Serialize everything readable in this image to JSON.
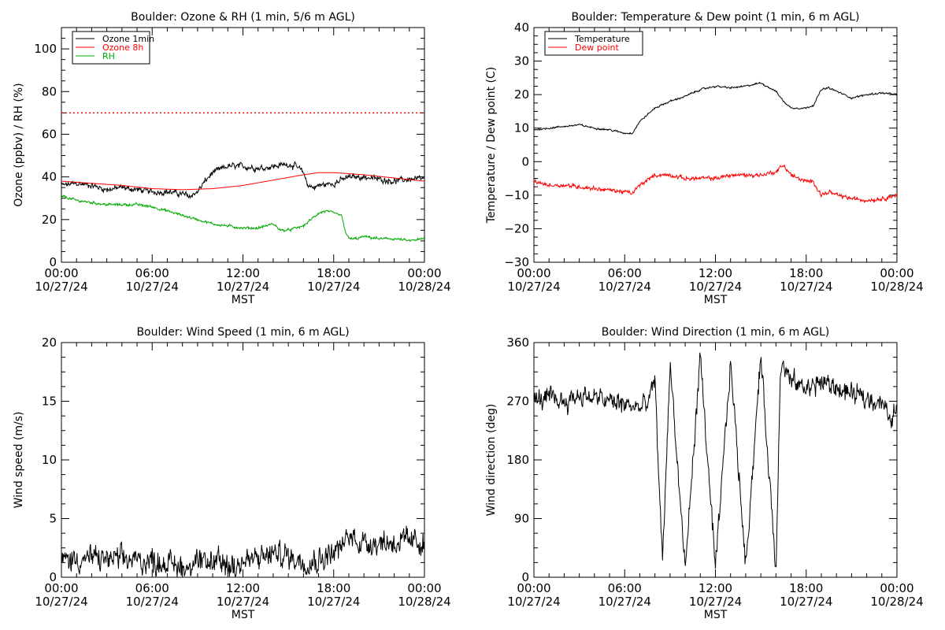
{
  "chart_data": [
    {
      "type": "line",
      "title": "Boulder: Ozone & RH (1 min, 5/6 m AGL)",
      "ylabel": "Ozone (ppbv) / RH (%)",
      "xlabel": "MST",
      "xlim": [
        0,
        24
      ],
      "ylim": [
        0,
        110
      ],
      "xtick_values": [
        0,
        6,
        12,
        18,
        24
      ],
      "xtick_labels": [
        [
          "00:00",
          "10/27/24"
        ],
        [
          "06:00",
          "10/27/24"
        ],
        [
          "12:00",
          "10/27/24"
        ],
        [
          "18:00",
          "10/27/24"
        ],
        [
          "00:00",
          "10/28/24"
        ]
      ],
      "ytick_values": [
        0,
        20,
        40,
        60,
        80,
        100
      ],
      "ytick_labels": [
        "0",
        "20",
        "40",
        "60",
        "80",
        "100"
      ],
      "legend_position": "top-left",
      "reference_line": {
        "y": 70,
        "color": "#ff0000",
        "style": "dotted"
      },
      "series": [
        {
          "name": "Ozone 1min",
          "color": "#000000",
          "noise": 1.6,
          "x": [
            0,
            1,
            2,
            3,
            4,
            5,
            6,
            7,
            8,
            8.5,
            9,
            9.5,
            10,
            11,
            12,
            13,
            14,
            15,
            15.5,
            16,
            16.3,
            16.7,
            17,
            18,
            19,
            20,
            21,
            22,
            23,
            24
          ],
          "y": [
            36,
            37,
            36,
            34,
            35,
            34,
            33,
            33,
            32,
            31,
            33,
            38,
            42,
            45,
            45,
            44,
            45,
            46,
            45,
            42,
            36,
            35,
            36,
            37,
            40,
            40,
            39,
            38,
            39,
            39
          ]
        },
        {
          "name": "Ozone 8h",
          "color": "#ff0000",
          "noise": 0,
          "x": [
            0,
            2,
            4,
            6,
            8,
            10,
            12,
            14,
            16,
            17,
            18,
            20,
            22,
            24
          ],
          "y": [
            38,
            37,
            36,
            34.5,
            34,
            34.5,
            36,
            38.5,
            41,
            42,
            42,
            41,
            39.5,
            38
          ]
        },
        {
          "name": "RH",
          "color": "#00aa00",
          "noise": 0.7,
          "x": [
            0,
            1,
            2,
            3,
            4,
            5,
            6,
            7,
            8,
            9,
            10,
            11,
            12,
            13,
            13.5,
            14,
            14.5,
            15,
            16,
            16.5,
            17,
            17.5,
            18,
            18.5,
            18.8,
            19,
            19.5,
            20,
            21,
            22,
            23,
            24
          ],
          "y": [
            31,
            29,
            28,
            27,
            27,
            27,
            26,
            24,
            22,
            20,
            18,
            17,
            16,
            16,
            17,
            18,
            15,
            15,
            17,
            20,
            23,
            24,
            23,
            22,
            14,
            11,
            11,
            12,
            11,
            11,
            10,
            11
          ]
        }
      ]
    },
    {
      "type": "line",
      "title": "Boulder: Temperature & Dew point (1 min, 6 m AGL)",
      "ylabel": "Temperature / Dew point (C)",
      "xlabel": "MST",
      "xlim": [
        0,
        24
      ],
      "ylim": [
        -30,
        40
      ],
      "xtick_values": [
        0,
        6,
        12,
        18,
        24
      ],
      "xtick_labels": [
        [
          "00:00",
          "10/27/24"
        ],
        [
          "06:00",
          "10/27/24"
        ],
        [
          "12:00",
          "10/27/24"
        ],
        [
          "18:00",
          "10/27/24"
        ],
        [
          "00:00",
          "10/28/24"
        ]
      ],
      "ytick_values": [
        -30,
        -20,
        -10,
        0,
        10,
        20,
        30,
        40
      ],
      "ytick_labels": [
        "−30",
        "−20",
        "−10",
        "0",
        "10",
        "20",
        "30",
        "40"
      ],
      "legend_position": "top-left",
      "series": [
        {
          "name": "Temperature",
          "color": "#000000",
          "noise": 0.3,
          "x": [
            0,
            1,
            2,
            3,
            4,
            5,
            6,
            6.5,
            7,
            8,
            9,
            10,
            11,
            12,
            13,
            14,
            15,
            16,
            16.5,
            17,
            18,
            18.5,
            19,
            19.5,
            20,
            21,
            22,
            23,
            24
          ],
          "y": [
            9.5,
            10,
            10.5,
            11,
            10,
            9.5,
            8.5,
            8.5,
            12,
            16,
            18,
            19.5,
            21.5,
            22.5,
            22,
            22.5,
            23.5,
            21,
            18,
            16,
            16,
            17,
            21.5,
            22,
            21,
            19,
            20,
            20.5,
            20
          ]
        },
        {
          "name": "Dew point",
          "color": "#ff0000",
          "noise": 0.7,
          "x": [
            0,
            1,
            2,
            3,
            4,
            5,
            6,
            6.5,
            7,
            8,
            9,
            10,
            11,
            12,
            13,
            14,
            15,
            16,
            16.5,
            17,
            18,
            18.5,
            19,
            19.5,
            20,
            21,
            22,
            23,
            24
          ],
          "y": [
            -6,
            -7,
            -7,
            -7.5,
            -8,
            -8.5,
            -9,
            -9.5,
            -7,
            -4,
            -4,
            -5,
            -5,
            -5,
            -4,
            -4,
            -4,
            -3,
            -1,
            -4,
            -6,
            -6,
            -10,
            -9,
            -10,
            -11,
            -11.5,
            -11,
            -10
          ]
        }
      ]
    },
    {
      "type": "line",
      "title": "Boulder: Wind Speed (1 min, 6 m AGL)",
      "ylabel": "Wind speed (m/s)",
      "xlabel": "MST",
      "xlim": [
        0,
        24
      ],
      "ylim": [
        0,
        20
      ],
      "xtick_values": [
        0,
        6,
        12,
        18,
        24
      ],
      "xtick_labels": [
        [
          "00:00",
          "10/27/24"
        ],
        [
          "06:00",
          "10/27/24"
        ],
        [
          "12:00",
          "10/27/24"
        ],
        [
          "18:00",
          "10/27/24"
        ],
        [
          "00:00",
          "10/28/24"
        ]
      ],
      "ytick_values": [
        0,
        5,
        10,
        15,
        20
      ],
      "ytick_labels": [
        "0",
        "5",
        "10",
        "15",
        "20"
      ],
      "series": [
        {
          "name": "",
          "color": "#000000",
          "noise": 1.2,
          "x": [
            0,
            2,
            4,
            6,
            7,
            8,
            9,
            10,
            11,
            12,
            13,
            14,
            15,
            16,
            17,
            18,
            18.5,
            19,
            20,
            21,
            22,
            23,
            24
          ],
          "y": [
            1.5,
            1.6,
            1.5,
            1.4,
            1.2,
            0.9,
            1,
            1.3,
            1,
            1.3,
            1.6,
            2,
            1.8,
            1.4,
            1.5,
            2.2,
            2.5,
            3.5,
            3,
            3,
            3,
            3,
            3
          ]
        }
      ]
    },
    {
      "type": "line",
      "title": "Boulder: Wind Direction (1 min, 6 m AGL)",
      "ylabel": "Wind direction (deg)",
      "xlabel": "MST",
      "xlim": [
        0,
        24
      ],
      "ylim": [
        0,
        360
      ],
      "xtick_values": [
        0,
        6,
        12,
        18,
        24
      ],
      "xtick_labels": [
        [
          "00:00",
          "10/27/24"
        ],
        [
          "06:00",
          "10/27/24"
        ],
        [
          "12:00",
          "10/27/24"
        ],
        [
          "18:00",
          "10/27/24"
        ],
        [
          "00:00",
          "10/28/24"
        ]
      ],
      "ytick_values": [
        0,
        90,
        180,
        270,
        360
      ],
      "ytick_labels": [
        "0",
        "90",
        "180",
        "270",
        "360"
      ],
      "series": [
        {
          "name": "",
          "color": "#000000",
          "noise": 18,
          "x": [
            0,
            1,
            2,
            3,
            4,
            5,
            6,
            7,
            7.5,
            8,
            8.5,
            9,
            10,
            11,
            12,
            13,
            14,
            15,
            16,
            16.3,
            17,
            18,
            19,
            20,
            21,
            22,
            23,
            23.5,
            24
          ],
          "y": [
            270,
            275,
            270,
            280,
            275,
            270,
            265,
            260,
            265,
            300,
            20,
            330,
            10,
            340,
            10,
            330,
            20,
            340,
            10,
            330,
            300,
            290,
            300,
            290,
            280,
            275,
            270,
            240,
            260
          ]
        }
      ]
    }
  ]
}
